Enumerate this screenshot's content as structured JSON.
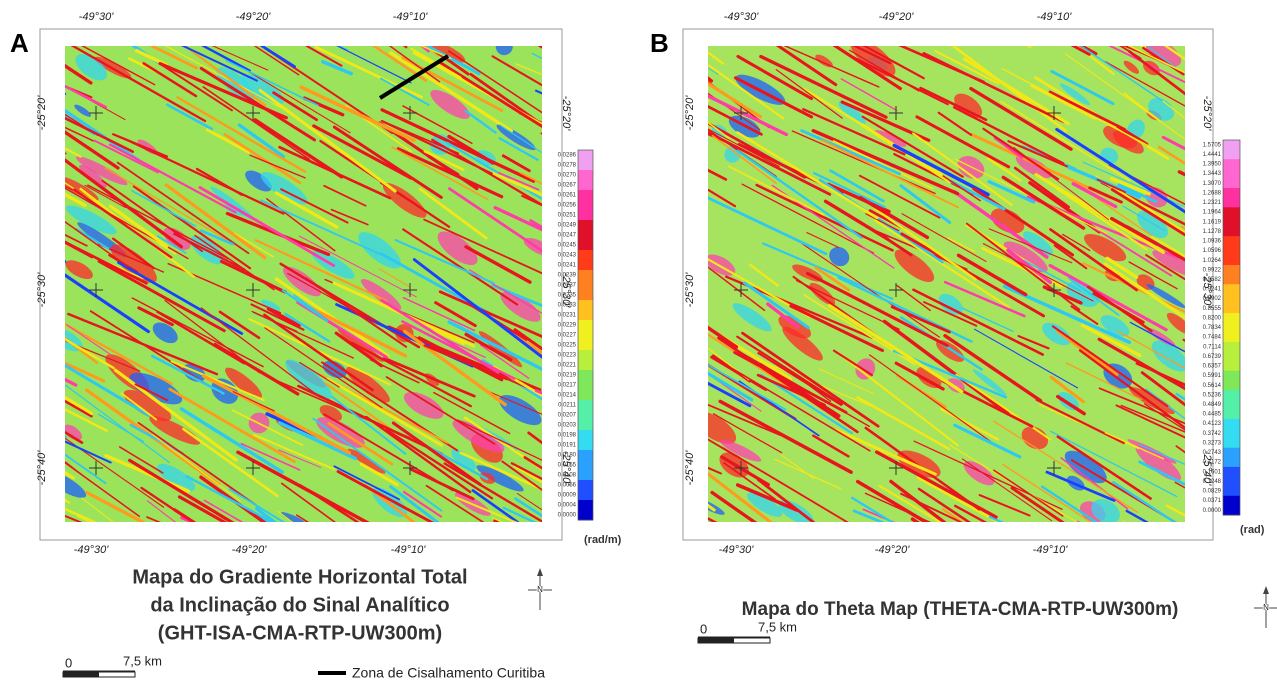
{
  "panels": [
    {
      "label": "A",
      "top_ticks": [
        "-49°30'",
        "-49°20'",
        "-49°10'"
      ],
      "bottom_ticks": [
        "-49°30'",
        "-49°20'",
        "-49°10'"
      ],
      "left_ticks": [
        "-25°20'",
        "-25°30'",
        "-25°40'"
      ],
      "right_ticks": [
        "-25°20'",
        "-25°30'",
        "-25°40'"
      ],
      "colorbar": {
        "labels": [
          "0.0286",
          "0.0278",
          "0.0270",
          "0.0267",
          "0.0261",
          "0.0256",
          "0.0251",
          "0.0249",
          "0.0247",
          "0.0245",
          "0.0243",
          "0.0241",
          "0.0239",
          "0.0237",
          "0.0235",
          "0.0233",
          "0.0231",
          "0.0229",
          "0.0227",
          "0.0225",
          "0.0223",
          "0.0221",
          "0.0219",
          "0.0217",
          "0.0214",
          "0.0211",
          "0.0207",
          "0.0203",
          "0.0198",
          "0.0191",
          "0.0180",
          "0.0155",
          "0.0108",
          "0.0056",
          "0.0009",
          "0.0004",
          "0.0000"
        ],
        "unit": "(rad/m)"
      },
      "title_lines": [
        "Mapa do Gradiente Horizontal Total",
        "da Inclinação do Sinal Analítico",
        "(GHT-ISA-CMA-RTP-UW300m)"
      ],
      "scale": {
        "start": "0",
        "end": "7,5 km"
      },
      "north": "N"
    },
    {
      "label": "B",
      "top_ticks": [
        "-49°30'",
        "-49°20'",
        "-49°10'"
      ],
      "bottom_ticks": [
        "-49°30'",
        "-49°20'",
        "-49°10'"
      ],
      "left_ticks": [
        "-25°20'",
        "-25°30'",
        "-25°40'"
      ],
      "right_ticks": [
        "-25°20'",
        "-25°30'",
        "-25°40'"
      ],
      "colorbar": {
        "labels": [
          "1.5705",
          "1.4441",
          "1.3950",
          "1.3443",
          "1.3070",
          "1.2688",
          "1.2321",
          "1.1964",
          "1.1619",
          "1.1278",
          "1.0936",
          "1.0596",
          "1.0264",
          "0.9922",
          "0.9582",
          "0.9241",
          "0.8902",
          "0.8555",
          "0.8200",
          "0.7834",
          "0.7484",
          "0.7114",
          "0.6739",
          "0.6357",
          "0.5991",
          "0.5614",
          "0.5236",
          "0.4849",
          "0.4485",
          "0.4123",
          "0.3742",
          "0.3273",
          "0.2743",
          "0.2172",
          "0.1601",
          "0.1248",
          "0.0829",
          "0.0371",
          "0.0000"
        ],
        "unit": "(rad)"
      },
      "title_lines": [
        "Mapa do Theta Map (THETA-CMA-RTP-UW300m)"
      ],
      "scale": {
        "start": "0",
        "end": "7,5 km"
      },
      "north": "N"
    }
  ],
  "legend": {
    "label": "Zona de Cisalhamento Curitiba"
  }
}
